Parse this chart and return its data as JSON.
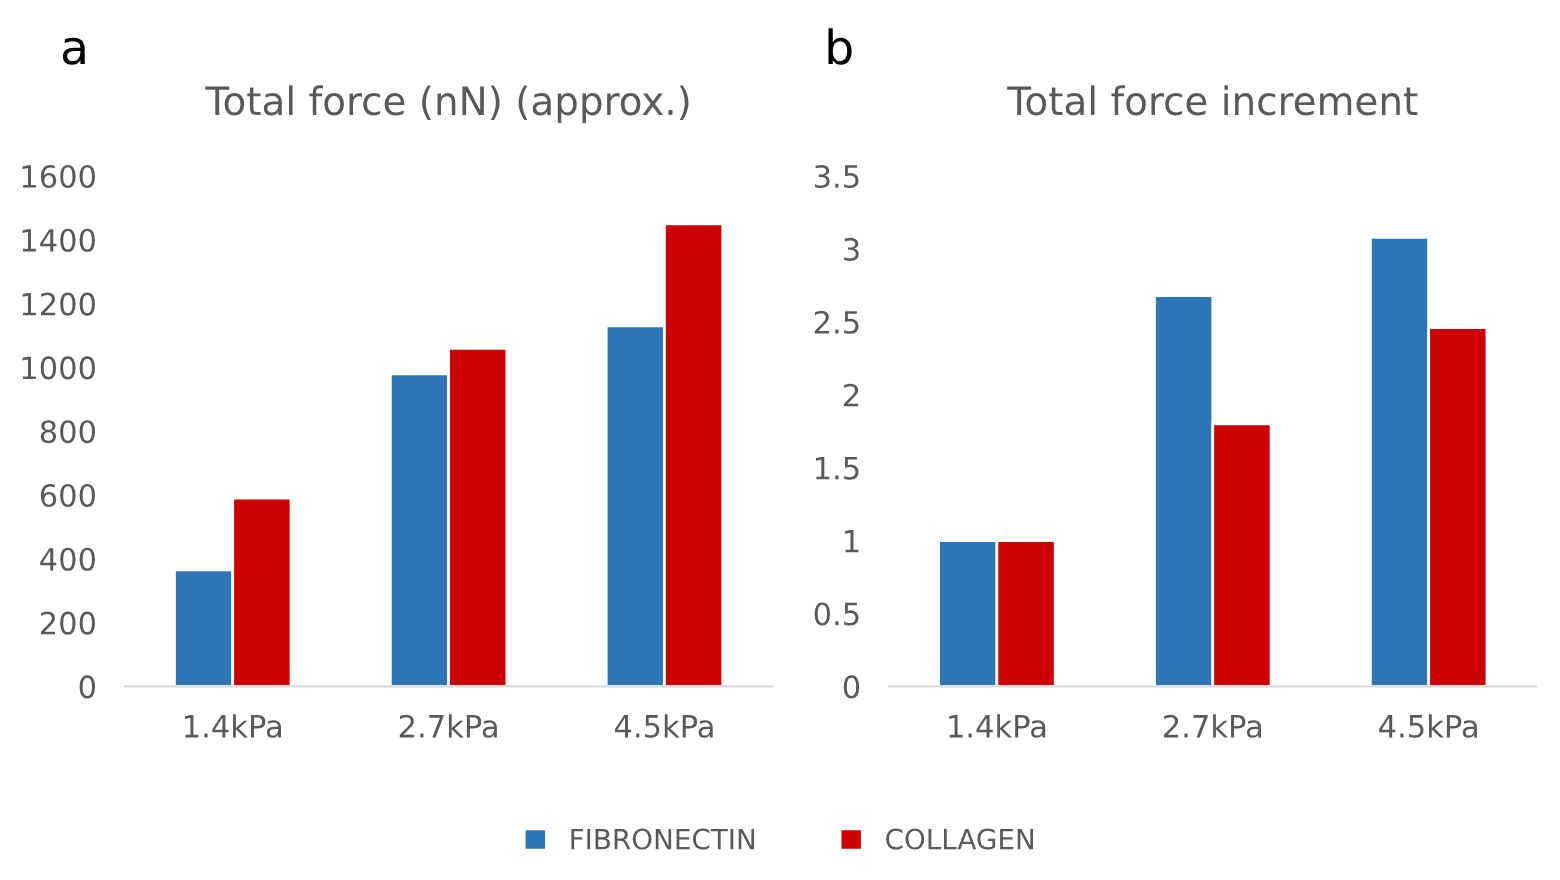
{
  "chart_data": [
    {
      "type": "bar",
      "title": "Total force (nN) (approx.)",
      "annotations": [
        "a"
      ],
      "categories": [
        "1.4kPa",
        "2.7kPa",
        "4.5kPa"
      ],
      "series": [
        {
          "name": "FIBRONECTIN",
          "color": "#2e75b6",
          "values": [
            365,
            980,
            1130
          ]
        },
        {
          "name": "COLLAGEN",
          "color": "#cc0000",
          "values": [
            590,
            1060,
            1450
          ]
        }
      ],
      "ylim": [
        0,
        1600
      ],
      "yticks": [
        0,
        200,
        400,
        600,
        800,
        1000,
        1200,
        1400,
        1600
      ],
      "grid": false,
      "legend": "bottom"
    },
    {
      "type": "bar",
      "title": "Total force increment",
      "annotations": [
        "b"
      ],
      "categories": [
        "1.4kPa",
        "2.7kPa",
        "4.5kPa"
      ],
      "series": [
        {
          "color": "#2e75b6",
          "values": [
            1,
            2.68,
            3.08
          ]
        },
        {
          "color": "#cc0000",
          "values": [
            1,
            1.8,
            2.46
          ]
        }
      ],
      "ylim": [
        0,
        3.5
      ],
      "yticks": [
        0,
        0.5,
        1,
        1.5,
        2,
        2.5,
        3,
        3.5
      ],
      "grid": false
    }
  ]
}
